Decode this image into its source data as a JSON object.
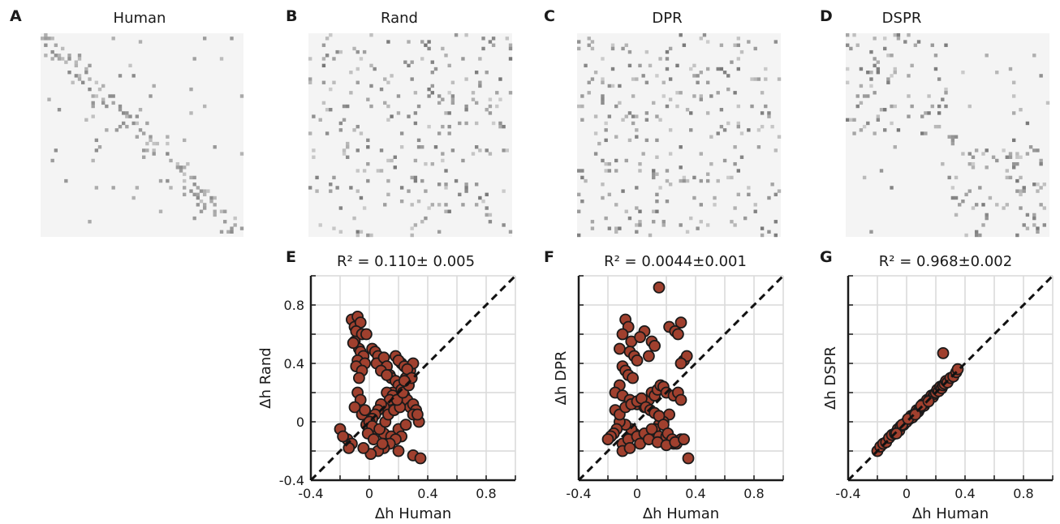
{
  "panels": {
    "A": {
      "letter": "A",
      "title": "Human"
    },
    "B": {
      "letter": "B",
      "title": "Rand"
    },
    "C": {
      "letter": "C",
      "title": "DPR"
    },
    "D": {
      "letter": "D",
      "title": "DSPR"
    },
    "E": {
      "letter": "E",
      "title": "R² = 0.110± 0.005"
    },
    "F": {
      "letter": "F",
      "title": "R² = 0.0044±0.001"
    },
    "G": {
      "letter": "G",
      "title": "R² = 0.968±0.002"
    }
  },
  "colors": {
    "point_fill": "#a0402e",
    "point_stroke": "#1a1a1a",
    "grid": "#d9d9d9",
    "matrix_bg": "#f4f4f4",
    "matrix_dark": "#333333"
  },
  "chart_data": [
    {
      "type": "heatmap",
      "panel": "A",
      "title": "Human",
      "description_pattern": "diagonal-blocks"
    },
    {
      "type": "heatmap",
      "panel": "B",
      "title": "Rand",
      "description_pattern": "uniform-sparse"
    },
    {
      "type": "heatmap",
      "panel": "C",
      "title": "DPR",
      "description_pattern": "uniform-sparse"
    },
    {
      "type": "heatmap",
      "panel": "D",
      "title": "DSPR",
      "description_pattern": "two-blocks"
    },
    {
      "type": "scatter",
      "panel": "E",
      "title": "R² = 0.110± 0.005",
      "xlabel": "Δh Human",
      "ylabel": "Δh Rand",
      "xlim": [
        -0.4,
        1.0
      ],
      "ylim": [
        -0.4,
        1.0
      ],
      "xticks": [
        "-0.4",
        "0",
        "0.4",
        "0.8"
      ],
      "yticks": [
        "-0.4",
        "0",
        "0.4",
        "0.8"
      ],
      "grid": true,
      "identity_line": true,
      "x": [
        -0.12,
        -0.1,
        -0.08,
        -0.06,
        -0.09,
        -0.05,
        -0.1,
        -0.07,
        -0.11,
        -0.06,
        -0.04,
        -0.08,
        -0.03,
        -0.09,
        -0.05,
        -0.07,
        -0.02,
        0.02,
        0.04,
        0.06,
        0.05,
        0.1,
        0.12,
        0.08,
        0.14,
        0.15,
        0.18,
        0.2,
        0.16,
        0.22,
        0.24,
        0.26,
        0.28,
        0.3,
        0.32,
        0.3,
        0.34,
        0.33,
        0.25,
        0.28,
        0.22,
        0.18,
        0.2,
        0.24,
        0.3,
        0.26,
        0.12,
        0.16,
        0.14,
        0.1,
        0.08,
        0.06,
        0.04,
        0.02,
        0.0,
        -0.02,
        0.05,
        0.1,
        0.15,
        0.2,
        0.25,
        -0.08,
        -0.06,
        -0.1,
        -0.05,
        -0.03,
        0.0,
        0.02,
        -0.01,
        0.03,
        0.07,
        0.11,
        0.13,
        0.17,
        0.21,
        0.19,
        0.23,
        0.27,
        0.29,
        0.22,
        0.18,
        0.14,
        0.1,
        0.06,
        -0.2,
        -0.15,
        -0.12,
        -0.18,
        -0.14,
        0.01,
        -0.04,
        0.09,
        0.2,
        0.3,
        0.35,
        0.24,
        0.12
      ],
      "y": [
        0.7,
        0.65,
        0.72,
        0.68,
        0.62,
        0.6,
        0.55,
        0.5,
        0.54,
        0.48,
        0.45,
        0.42,
        0.4,
        0.38,
        0.35,
        0.3,
        0.6,
        0.5,
        0.48,
        0.45,
        0.4,
        0.44,
        0.38,
        0.35,
        0.32,
        0.3,
        0.28,
        0.25,
        0.2,
        0.22,
        0.18,
        0.15,
        0.1,
        0.12,
        0.08,
        0.05,
        0.0,
        0.05,
        0.3,
        0.35,
        0.4,
        0.45,
        0.42,
        0.38,
        0.4,
        0.36,
        0.2,
        0.18,
        0.15,
        0.1,
        0.12,
        0.08,
        0.05,
        0.02,
        0.0,
        -0.02,
        -0.05,
        -0.08,
        -0.1,
        -0.05,
        -0.02,
        0.2,
        0.15,
        0.1,
        0.05,
        0.08,
        0.0,
        -0.03,
        -0.08,
        -0.12,
        -0.05,
        0.0,
        0.05,
        0.08,
        0.1,
        0.15,
        0.2,
        0.25,
        0.3,
        -0.1,
        -0.12,
        -0.15,
        -0.18,
        -0.2,
        -0.05,
        -0.12,
        -0.15,
        -0.1,
        -0.18,
        -0.22,
        -0.18,
        -0.15,
        -0.2,
        -0.23,
        -0.25,
        0.28,
        0.32
      ]
    },
    {
      "type": "scatter",
      "panel": "F",
      "title": "R² = 0.0044±0.001",
      "xlabel": "Δh Human",
      "ylabel": "Δh DPR",
      "xlim": [
        -0.4,
        1.0
      ],
      "ylim": [
        -0.4,
        1.0
      ],
      "xticks": [
        "-0.4",
        "0",
        "0.4",
        "0.8"
      ],
      "grid": true,
      "identity_line": true,
      "x": [
        0.15,
        -0.08,
        -0.06,
        -0.1,
        -0.04,
        0.05,
        0.02,
        -0.12,
        -0.05,
        -0.02,
        0.1,
        0.12,
        0.08,
        0.0,
        -0.1,
        -0.08,
        -0.06,
        -0.03,
        -0.12,
        -0.15,
        -0.1,
        -0.05,
        0.0,
        0.05,
        0.08,
        0.1,
        0.12,
        0.14,
        0.16,
        0.18,
        0.2,
        0.25,
        0.28,
        0.3,
        0.32,
        0.34,
        0.22,
        0.18,
        0.15,
        0.12,
        0.1,
        0.06,
        0.04,
        0.02,
        -0.02,
        -0.04,
        -0.08,
        -0.12,
        -0.14,
        -0.16,
        -0.18,
        -0.2,
        -0.1,
        -0.06,
        0.0,
        0.05,
        0.1,
        0.15,
        0.2,
        0.25,
        0.3,
        0.22,
        0.26,
        0.28,
        0.3,
        0.2,
        -0.15,
        -0.12,
        -0.08,
        -0.04,
        0.0,
        0.03,
        0.06,
        0.09,
        0.12,
        0.15,
        0.18,
        0.21,
        0.24,
        0.27,
        -0.1,
        -0.05,
        0.02,
        0.08,
        0.14,
        0.2,
        0.26,
        0.32,
        0.35,
        0.3
      ],
      "y": [
        0.92,
        0.7,
        0.65,
        0.6,
        0.55,
        0.62,
        0.58,
        0.5,
        0.48,
        0.45,
        0.55,
        0.52,
        0.45,
        0.42,
        0.38,
        0.35,
        0.32,
        0.3,
        0.25,
        0.2,
        0.18,
        0.15,
        0.12,
        0.1,
        0.15,
        0.2,
        0.18,
        0.22,
        0.25,
        0.24,
        0.2,
        0.18,
        0.2,
        0.15,
        0.42,
        0.45,
        0.05,
        0.0,
        -0.02,
        -0.05,
        -0.08,
        -0.1,
        -0.12,
        -0.1,
        -0.08,
        -0.05,
        -0.02,
        0.0,
        -0.05,
        -0.08,
        -0.1,
        -0.12,
        -0.15,
        -0.12,
        -0.1,
        -0.08,
        -0.05,
        -0.1,
        -0.12,
        -0.15,
        -0.12,
        0.65,
        0.62,
        0.6,
        0.68,
        -0.1,
        0.08,
        0.05,
        0.1,
        0.12,
        0.14,
        0.16,
        0.1,
        0.08,
        0.06,
        0.04,
        -0.02,
        -0.08,
        -0.12,
        -0.15,
        -0.2,
        -0.18,
        -0.15,
        -0.12,
        -0.14,
        -0.16,
        -0.14,
        -0.12,
        -0.25,
        0.4
      ]
    },
    {
      "type": "scatter",
      "panel": "G",
      "title": "R² = 0.968±0.002",
      "xlabel": "Δh Human",
      "ylabel": "Δh DSPR",
      "xlim": [
        -0.4,
        1.0
      ],
      "ylim": [
        -0.4,
        1.0
      ],
      "xticks": [
        "-0.4",
        "0",
        "0.4",
        "0.8"
      ],
      "grid": true,
      "identity_line": true,
      "x": [
        -0.2,
        -0.18,
        -0.16,
        -0.14,
        -0.12,
        -0.1,
        -0.08,
        -0.06,
        -0.05,
        -0.04,
        -0.02,
        0.0,
        0.02,
        0.03,
        0.04,
        0.05,
        0.06,
        0.07,
        0.08,
        0.09,
        0.1,
        0.11,
        0.12,
        0.13,
        0.14,
        0.15,
        0.16,
        0.17,
        0.18,
        0.19,
        0.2,
        0.21,
        0.22,
        0.23,
        0.24,
        0.25,
        0.26,
        0.27,
        0.28,
        0.3,
        0.32,
        0.34,
        0.35,
        0.25,
        -0.07,
        -0.03,
        0.01,
        0.06,
        0.1,
        0.15
      ],
      "y": [
        -0.2,
        -0.17,
        -0.15,
        -0.14,
        -0.11,
        -0.09,
        -0.08,
        -0.05,
        -0.06,
        -0.03,
        -0.02,
        0.0,
        0.02,
        0.04,
        0.03,
        0.05,
        0.06,
        0.08,
        0.07,
        0.09,
        0.1,
        0.12,
        0.11,
        0.13,
        0.15,
        0.14,
        0.16,
        0.18,
        0.17,
        0.19,
        0.2,
        0.22,
        0.21,
        0.24,
        0.23,
        0.25,
        0.26,
        0.28,
        0.27,
        0.3,
        0.31,
        0.34,
        0.36,
        0.47,
        -0.08,
        -0.02,
        0.02,
        0.05,
        0.11,
        0.14
      ]
    }
  ]
}
